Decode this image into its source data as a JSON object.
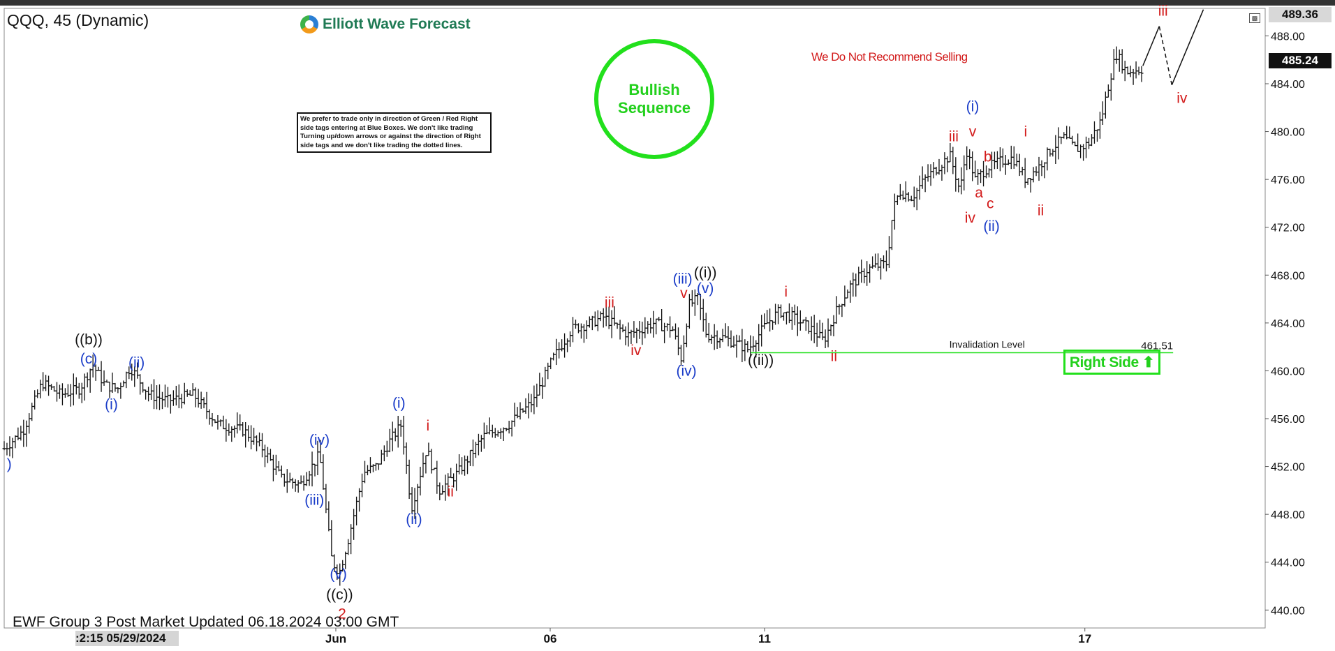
{
  "header": {
    "symbol": "QQQ, 45 (Dynamic)",
    "logo_text": "Elliott Wave Forecast"
  },
  "notes": {
    "bullish": [
      "Bullish",
      "Sequence"
    ],
    "disclaimer": "We prefer to trade only in direction of Green / Red Right side tags entering at Blue Boxes. We don't like trading Turning up/down arrows or against the direction of Right side tags and we don't like trading the dotted lines.",
    "no_sell": "We Do Not Recommend Selling",
    "right_side": "Right Side ⬆"
  },
  "footer": {
    "text": "EWF Group 3 Post Market  Updated 06.18.2024 03:00 GMT",
    "timestamp": ":2:15 05/29/2024"
  },
  "price_axis": {
    "high_label": "489.36",
    "last_label": "485.24"
  },
  "colors": {
    "green": "#22e01c",
    "red": "#d21a1a",
    "blue": "#1a3cc8",
    "black": "#111111"
  },
  "chart_data": {
    "type": "candlestick",
    "ylim": [
      438.5,
      490.3
    ],
    "xlim": [
      0,
      100
    ],
    "yticks": [
      440,
      444,
      448,
      452,
      456,
      460,
      464,
      468,
      472,
      476,
      480,
      484,
      488
    ],
    "xticks": [
      {
        "label": "Jun",
        "x": 26.3
      },
      {
        "label": "06",
        "x": 43.3
      },
      {
        "label": "11",
        "x": 60.3
      },
      {
        "label": "17",
        "x": 85.7
      }
    ],
    "price_path": [
      [
        0,
        453.5
      ],
      [
        1.5,
        455
      ],
      [
        3,
        459
      ],
      [
        4.5,
        458
      ],
      [
        6,
        458.5
      ],
      [
        7,
        460.5
      ],
      [
        8,
        458.8
      ],
      [
        9,
        458.5
      ],
      [
        10,
        460.3
      ],
      [
        11.5,
        458
      ],
      [
        13,
        457.5
      ],
      [
        15,
        458
      ],
      [
        17,
        455.5
      ],
      [
        19,
        455
      ],
      [
        20.5,
        453.5
      ],
      [
        22,
        451
      ],
      [
        23.5,
        450.5
      ],
      [
        25,
        453
      ],
      [
        26,
        444
      ],
      [
        26.6,
        443.2
      ],
      [
        27.3,
        446
      ],
      [
        28.5,
        451.5
      ],
      [
        29.5,
        452
      ],
      [
        30.5,
        454
      ],
      [
        31.5,
        455.5
      ],
      [
        32.3,
        448.5
      ],
      [
        33.5,
        453.5
      ],
      [
        34.5,
        450
      ],
      [
        36,
        451.5
      ],
      [
        38,
        454.5
      ],
      [
        40,
        455.5
      ],
      [
        42,
        457.5
      ],
      [
        43.5,
        461
      ],
      [
        45,
        463.5
      ],
      [
        46.5,
        464
      ],
      [
        47.5,
        464.5
      ],
      [
        49.5,
        463
      ],
      [
        51.5,
        464
      ],
      [
        53,
        463.5
      ],
      [
        53.7,
        461
      ],
      [
        54.3,
        465.5
      ],
      [
        55,
        466
      ],
      [
        55.7,
        463
      ],
      [
        57,
        462.8
      ],
      [
        59,
        461.8
      ],
      [
        60.5,
        464
      ],
      [
        61.5,
        465
      ],
      [
        62.5,
        464.5
      ],
      [
        64,
        463.5
      ],
      [
        65,
        462.5
      ],
      [
        66,
        465
      ],
      [
        67,
        467
      ],
      [
        68.5,
        468.5
      ],
      [
        70,
        469
      ],
      [
        70.5,
        473.5
      ],
      [
        71,
        475
      ],
      [
        72,
        474.5
      ],
      [
        73,
        476
      ],
      [
        74,
        477
      ],
      [
        75,
        478
      ],
      [
        75.8,
        475
      ],
      [
        76.3,
        478.5
      ],
      [
        77,
        476
      ],
      [
        78,
        477
      ],
      [
        79,
        477.5
      ],
      [
        80,
        477.8
      ],
      [
        81,
        476
      ],
      [
        82,
        477
      ],
      [
        83,
        478.5
      ],
      [
        84,
        479.5
      ],
      [
        85,
        478.5
      ],
      [
        86,
        479
      ],
      [
        87,
        481
      ],
      [
        87.7,
        484.5
      ],
      [
        88.2,
        486.5
      ],
      [
        89,
        485
      ],
      [
        90.3,
        485.24
      ]
    ],
    "projection": [
      [
        90.3,
        485.5
      ],
      [
        91.6,
        488.8
      ],
      [
        92.6,
        483.9
      ],
      [
        95.1,
        490.2
      ]
    ],
    "projection_dashed_segment": 1,
    "invalidation": {
      "label": "Invalidation Level",
      "value": 461.51,
      "value_label": "461.51",
      "x_start": 59.2,
      "x_end": 92.7
    },
    "annotations": [
      {
        "text": ")",
        "x": 0.4,
        "y": 451.8,
        "color": "blue"
      },
      {
        "text": "((b))",
        "x": 6.7,
        "y": 462.2,
        "color": "black"
      },
      {
        "text": "(c)",
        "x": 6.7,
        "y": 460.6,
        "color": "blue"
      },
      {
        "text": "(ii)",
        "x": 10.5,
        "y": 460.3,
        "color": "blue"
      },
      {
        "text": "(i)",
        "x": 8.5,
        "y": 456.8,
        "color": "blue"
      },
      {
        "text": "(iv)",
        "x": 25.0,
        "y": 453.8,
        "color": "blue"
      },
      {
        "text": "(iii)",
        "x": 24.6,
        "y": 448.8,
        "color": "blue"
      },
      {
        "text": "(v)",
        "x": 26.5,
        "y": 442.6,
        "color": "blue"
      },
      {
        "text": "((c))",
        "x": 26.6,
        "y": 440.9,
        "color": "black"
      },
      {
        "text": "2",
        "x": 26.8,
        "y": 439.3,
        "color": "red"
      },
      {
        "text": "(i)",
        "x": 31.3,
        "y": 456.9,
        "color": "blue"
      },
      {
        "text": "(ii)",
        "x": 32.5,
        "y": 447.2,
        "color": "blue"
      },
      {
        "text": "i",
        "x": 33.6,
        "y": 455.0,
        "color": "red"
      },
      {
        "text": "ii",
        "x": 35.4,
        "y": 449.5,
        "color": "red"
      },
      {
        "text": "iii",
        "x": 48.0,
        "y": 465.3,
        "color": "red"
      },
      {
        "text": "iv",
        "x": 50.1,
        "y": 461.3,
        "color": "red"
      },
      {
        "text": "(iii)",
        "x": 53.8,
        "y": 467.3,
        "color": "blue"
      },
      {
        "text": "v",
        "x": 53.9,
        "y": 466.1,
        "color": "red"
      },
      {
        "text": "((i))",
        "x": 55.6,
        "y": 467.8,
        "color": "black"
      },
      {
        "text": "(v)",
        "x": 55.6,
        "y": 466.5,
        "color": "blue"
      },
      {
        "text": "(iv)",
        "x": 54.1,
        "y": 459.6,
        "color": "blue"
      },
      {
        "text": "((ii))",
        "x": 60.0,
        "y": 460.5,
        "color": "black"
      },
      {
        "text": "i",
        "x": 62.0,
        "y": 466.2,
        "color": "red"
      },
      {
        "text": "ii",
        "x": 65.8,
        "y": 460.8,
        "color": "red"
      },
      {
        "text": "iii",
        "x": 75.3,
        "y": 479.2,
        "color": "red"
      },
      {
        "text": "(i)",
        "x": 76.8,
        "y": 481.7,
        "color": "blue"
      },
      {
        "text": "v",
        "x": 76.8,
        "y": 479.6,
        "color": "red"
      },
      {
        "text": "b",
        "x": 78.0,
        "y": 477.5,
        "color": "red"
      },
      {
        "text": "a",
        "x": 77.3,
        "y": 474.5,
        "color": "red"
      },
      {
        "text": "c",
        "x": 78.2,
        "y": 473.6,
        "color": "red"
      },
      {
        "text": "iv",
        "x": 76.6,
        "y": 472.4,
        "color": "red"
      },
      {
        "text": "(ii)",
        "x": 78.3,
        "y": 471.7,
        "color": "blue"
      },
      {
        "text": "i",
        "x": 81.0,
        "y": 479.6,
        "color": "red"
      },
      {
        "text": "ii",
        "x": 82.2,
        "y": 473.0,
        "color": "red"
      },
      {
        "text": "iii",
        "x": 91.9,
        "y": 489.7,
        "color": "red"
      },
      {
        "text": "iv",
        "x": 93.4,
        "y": 482.4,
        "color": "red"
      }
    ]
  }
}
